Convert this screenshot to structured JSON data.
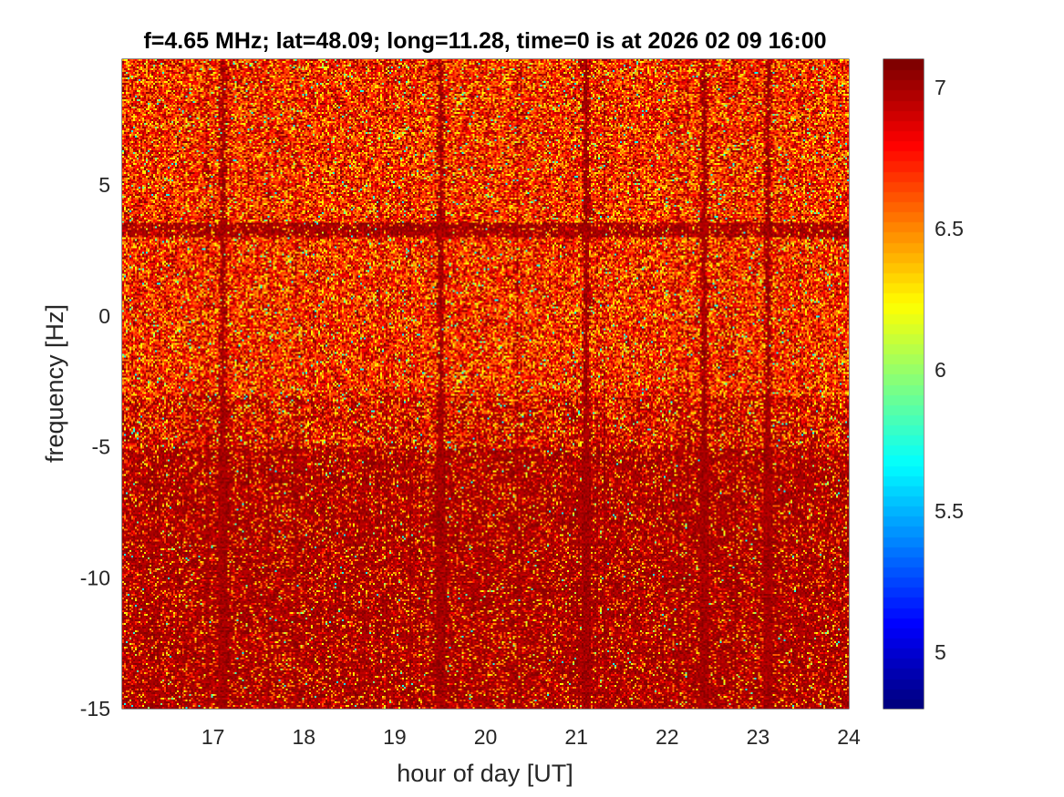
{
  "chart_data": {
    "type": "heatmap",
    "title": "f=4.65 MHz;  lat=48.09; long=11.28, time=0 is at 2026 02 09 16:00",
    "xlabel": "hour of day [UT]",
    "ylabel": "frequency [Hz]",
    "xlim": [
      16,
      24
    ],
    "ylim": [
      -15,
      9.8
    ],
    "x_ticks": [
      17,
      18,
      19,
      20,
      21,
      22,
      23,
      24
    ],
    "y_ticks": [
      -15,
      -10,
      -5,
      0,
      5
    ],
    "colorbar": {
      "colormap": "jet",
      "clim": [
        4.8,
        7.1
      ],
      "ticks": [
        5,
        5.5,
        6,
        6.5,
        7
      ]
    },
    "grid": false,
    "dominant_level": 7,
    "features": [
      "speckled red/orange noise across the whole panel",
      "horizontal dark-red trace near +3.3 Hz",
      "vertical dark-red streaks near 17.1, 19.5, 21.1, 22.4 and 23.1 UT",
      "more saturated dark red below about -5 Hz"
    ]
  }
}
